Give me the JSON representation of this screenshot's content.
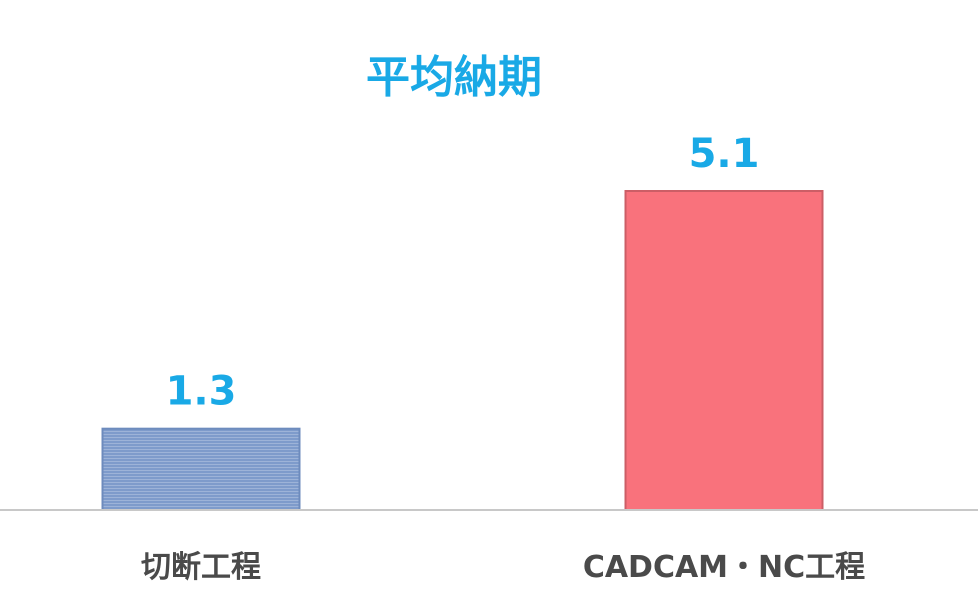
{
  "chart_data": {
    "type": "bar",
    "title": "平均納期",
    "categories": [
      "切断工程",
      "CADCAM・NC工程"
    ],
    "values": [
      1.3,
      5.1
    ],
    "data_labels": [
      "1.3",
      "5.1"
    ],
    "ylim": [
      0,
      5.1
    ],
    "grid": false,
    "legend": "none",
    "colors": {
      "title": "#19a9e6",
      "data_label": "#19a9e6",
      "category_label": "#4a4a4a",
      "baseline": "#c8c8c8",
      "bars": [
        "#7e9bcb",
        "#f9727c"
      ],
      "bar_edges": [
        "#6d8bbd",
        "#cc5e66"
      ]
    }
  }
}
